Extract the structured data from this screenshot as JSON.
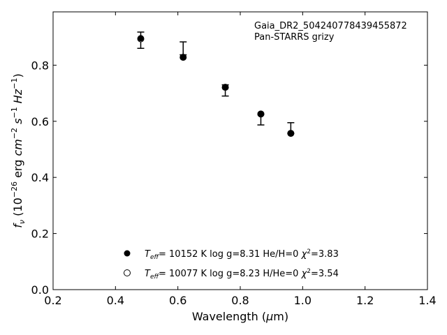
{
  "chart_data": {
    "type": "scatter",
    "xlabel": "Wavelength (μm)",
    "ylabel": "f_ν (10^-26 erg cm^-2 s^-1 Hz^-1)",
    "xlim": [
      0.2,
      1.4
    ],
    "ylim": [
      0.0,
      0.99
    ],
    "xticks": [
      "0.2",
      "0.4",
      "0.6",
      "0.8",
      "1.0",
      "1.2",
      "1.4"
    ],
    "yticks": [
      "0.0",
      "0.2",
      "0.4",
      "0.6",
      "0.8"
    ],
    "grid": false,
    "annotation": [
      "Gaia_DR2_5042407784394558​72",
      "Pan-STARRS grizy"
    ],
    "observed": {
      "x": [
        0.481,
        0.617,
        0.752,
        0.866,
        0.962
      ],
      "y": [
        0.889,
        0.86,
        0.71,
        0.606,
        0.576
      ],
      "yerr": [
        0.029,
        0.023,
        0.02,
        0.019,
        0.019
      ]
    },
    "series": [
      {
        "name": "T_eff= 10152 K  log g=8.31  He/H=0  χ²=3.83",
        "marker": "filled",
        "x": [
          0.481,
          0.617,
          0.752,
          0.866,
          0.962
        ],
        "y": [
          0.896,
          0.829,
          0.722,
          0.626,
          0.557
        ]
      },
      {
        "name": "T_eff= 10077 K  log g=8.23  H/He=0  χ²=3.54",
        "marker": "open",
        "x": [
          0.481,
          0.617,
          0.752,
          0.866,
          0.962
        ],
        "y": [
          0.894,
          0.828,
          0.721,
          0.626,
          0.557
        ]
      }
    ],
    "legend_position": "lower-center"
  }
}
